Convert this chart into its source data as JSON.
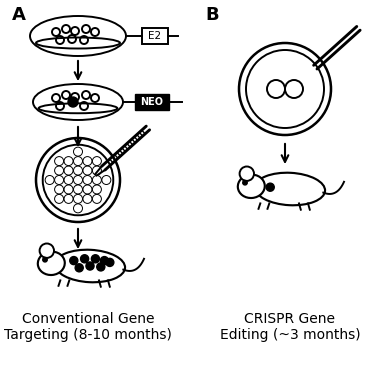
{
  "background_color": "#ffffff",
  "panel_a_label": "A",
  "panel_b_label": "B",
  "caption_a": "Conventional Gene\nTargeting (8-10 months)",
  "caption_b": "CRISPR Gene\nEditing (~3 months)",
  "text_color": "#000000",
  "line_color": "#000000",
  "caption_fontsize": 10,
  "label_fontsize": 13,
  "fig_width": 3.82,
  "fig_height": 3.74,
  "dpi": 100
}
